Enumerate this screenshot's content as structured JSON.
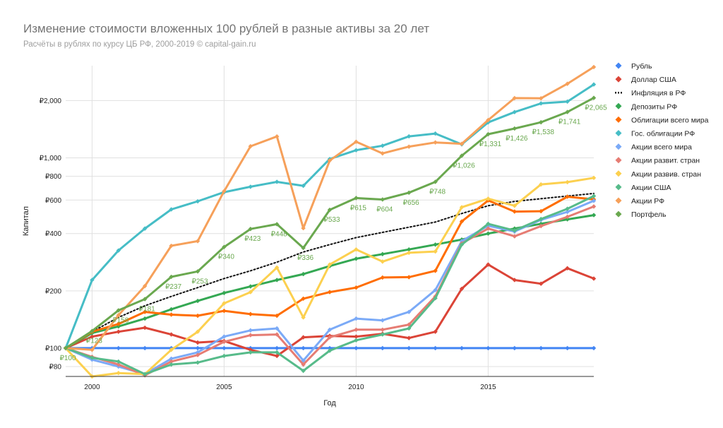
{
  "chart_data": {
    "type": "line",
    "title": "Изменение стоимости вложенных 100 рублей в разные активы за 20 лет",
    "subtitle": "Расчёты в рублях по курсу ЦБ РФ, 2000-2019 © capital-gain.ru",
    "xlabel": "Год",
    "ylabel": "Капитал",
    "y_scale": "log",
    "grid": true,
    "legend_position": "right",
    "x": [
      1999,
      2000,
      2001,
      2002,
      2003,
      2004,
      2005,
      2006,
      2007,
      2008,
      2009,
      2010,
      2011,
      2012,
      2013,
      2014,
      2015,
      2016,
      2017,
      2018,
      2019
    ],
    "xticks": [
      2000,
      2005,
      2010,
      2015
    ],
    "xtick_labels": [
      "2000",
      "2005",
      "2010",
      "2015"
    ],
    "xlim": [
      1999,
      2019
    ],
    "yticks": [
      80,
      100,
      200,
      400,
      600,
      800,
      1000,
      2000
    ],
    "ytick_labels": [
      "₽80",
      "₽100",
      "₽200",
      "₽400",
      "₽600",
      "₽800",
      "₽1,000",
      "₽2,000"
    ],
    "ylim": [
      71,
      3050
    ],
    "series": [
      {
        "name": "Рубль",
        "color": "#4285f4",
        "style": "solid",
        "markers": true,
        "values": [
          100,
          100,
          100,
          100,
          100,
          100,
          100,
          100,
          100,
          100,
          100,
          100,
          100,
          100,
          100,
          100,
          100,
          100,
          100,
          100,
          100
        ]
      },
      {
        "name": "Доллар США",
        "color": "#db4437",
        "style": "solid",
        "markers": true,
        "values": [
          100,
          115,
          122,
          128,
          118,
          107,
          109,
          98,
          91,
          114,
          116,
          115,
          119,
          113,
          122,
          205,
          275,
          228,
          218,
          263,
          232
        ]
      },
      {
        "name": "Инфляция в РФ",
        "color": "#111111",
        "style": "dotted",
        "markers": false,
        "values": [
          100,
          122,
          145,
          167,
          187,
          208,
          232,
          255,
          283,
          320,
          350,
          381,
          406,
          432,
          460,
          510,
          560,
          590,
          610,
          630,
          650
        ]
      },
      {
        "name": "Депозиты РФ",
        "color": "#34a853",
        "style": "solid",
        "markers": true,
        "values": [
          100,
          120,
          130,
          143,
          160,
          177,
          195,
          211,
          228,
          245,
          270,
          295,
          312,
          330,
          350,
          372,
          400,
          425,
          450,
          475,
          500
        ]
      },
      {
        "name": "Облигации всего мира",
        "color": "#ff6d00",
        "style": "solid",
        "markers": true,
        "values": [
          100,
          122,
          134,
          155,
          150,
          148,
          157,
          151,
          148,
          182,
          197,
          208,
          235,
          236,
          255,
          463,
          597,
          522,
          524,
          625,
          605
        ]
      },
      {
        "name": "Гос. облигации РФ",
        "color": "#46bdc6",
        "style": "solid",
        "markers": true,
        "values": [
          100,
          228,
          326,
          425,
          536,
          591,
          660,
          705,
          748,
          713,
          986,
          1097,
          1158,
          1297,
          1342,
          1177,
          1536,
          1740,
          1932,
          1975,
          2430
        ]
      },
      {
        "name": "Акции всего мира",
        "color": "#7baaf7",
        "style": "solid",
        "markers": true,
        "values": [
          100,
          87,
          80,
          73,
          88,
          95,
          115,
          124,
          127,
          86,
          125,
          143,
          140,
          155,
          202,
          365,
          440,
          410,
          472,
          520,
          595
        ]
      },
      {
        "name": "Акции развит. стран",
        "color": "#e67c73",
        "style": "solid",
        "markers": true,
        "values": [
          100,
          90,
          82,
          72,
          85,
          92,
          108,
          117,
          118,
          82,
          114,
          125,
          125,
          133,
          187,
          355,
          425,
          387,
          438,
          490,
          555
        ]
      },
      {
        "name": "Акции развив. стран",
        "color": "#fcd04f",
        "style": "solid",
        "markers": true,
        "values": [
          100,
          71,
          74,
          73,
          98,
          122,
          172,
          197,
          265,
          145,
          275,
          330,
          285,
          317,
          322,
          550,
          610,
          560,
          725,
          745,
          785
        ]
      },
      {
        "name": "Акции США",
        "color": "#57bb8a",
        "style": "solid",
        "markers": true,
        "values": [
          100,
          89,
          85,
          73,
          82,
          84,
          91,
          95,
          95,
          76,
          97,
          110,
          118,
          127,
          183,
          350,
          450,
          415,
          477,
          540,
          630
        ]
      },
      {
        "name": "Акции РФ",
        "color": "#f6a05a",
        "style": "solid",
        "markers": true,
        "values": [
          100,
          98,
          149,
          212,
          345,
          365,
          668,
          1150,
          1295,
          427,
          968,
          1215,
          1055,
          1145,
          1205,
          1185,
          1580,
          2060,
          2055,
          2450,
          3000
        ]
      },
      {
        "name": "Портфель",
        "color": "#6aa84f",
        "style": "solid",
        "markers": true,
        "values": [
          100,
          123,
          158,
          181,
          237,
          253,
          340,
          423,
          448,
          336,
          533,
          615,
          604,
          656,
          748,
          1026,
          1331,
          1426,
          1538,
          1741,
          2065
        ],
        "data_labels": [
          "₽100",
          "₽123",
          "₽158",
          "₽181",
          "₽237",
          "₽253",
          "₽340",
          "₽423",
          "₽448",
          "₽336",
          "₽533",
          "₽615",
          "₽604",
          "₽656",
          "₽748",
          "₽1,026",
          "₽1,331",
          "₽1,426",
          "₽1,538",
          "₽1,741",
          "₽2,065"
        ]
      }
    ]
  }
}
